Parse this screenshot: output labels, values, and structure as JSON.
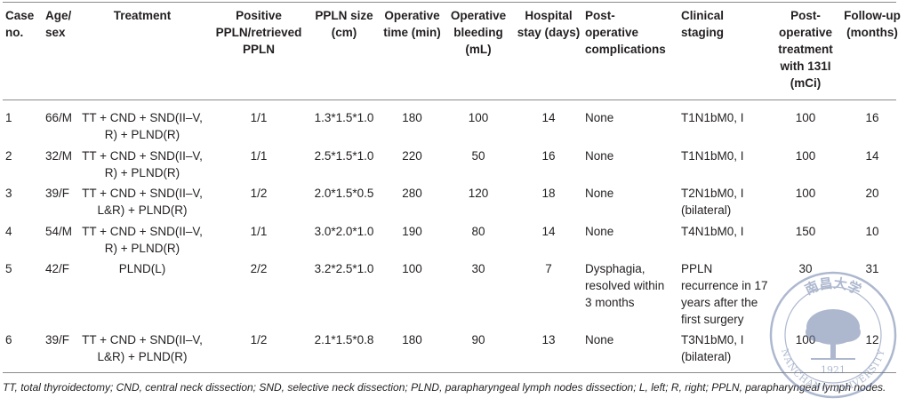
{
  "headers": [
    {
      "key": "case",
      "lines": [
        "Case",
        "no."
      ]
    },
    {
      "key": "agesex",
      "lines": [
        "Age/",
        "sex"
      ]
    },
    {
      "key": "treatment",
      "lines": [
        "Treatment"
      ]
    },
    {
      "key": "positive",
      "lines": [
        "Positive",
        "PPLN/retrieved",
        "PPLN"
      ]
    },
    {
      "key": "size",
      "lines": [
        "PPLN size",
        "(cm)"
      ]
    },
    {
      "key": "optime",
      "lines": [
        "Operative",
        "time (min)"
      ]
    },
    {
      "key": "bleeding",
      "lines": [
        "Operative",
        "bleeding",
        "(mL)"
      ]
    },
    {
      "key": "stay",
      "lines": [
        "Hospital",
        "stay (days)"
      ]
    },
    {
      "key": "complications",
      "lines": [
        "Post-",
        "operative",
        "complications"
      ]
    },
    {
      "key": "staging",
      "lines": [
        "Clinical",
        "staging"
      ]
    },
    {
      "key": "postop",
      "lines": [
        "Post-",
        "operative",
        "treatment",
        "with 131I",
        "(mCi)"
      ]
    },
    {
      "key": "followup",
      "lines": [
        "Follow-up",
        "(months)"
      ]
    }
  ],
  "rows": [
    {
      "case": "1",
      "agesex": "66/M",
      "treatment": [
        "TT + CND + SND(II–V,",
        "R) + PLND(R)"
      ],
      "positive": "1/1",
      "size": "1.3*1.5*1.0",
      "optime": "180",
      "bleeding": "100",
      "stay": "14",
      "complications": [
        "None"
      ],
      "staging": [
        "T1N1bM0, I"
      ],
      "postop": "100",
      "followup": "16"
    },
    {
      "case": "2",
      "agesex": "32/M",
      "treatment": [
        "TT + CND + SND(II–V,",
        "R) + PLND(R)"
      ],
      "positive": "1/1",
      "size": "2.5*1.5*1.0",
      "optime": "220",
      "bleeding": "50",
      "stay": "16",
      "complications": [
        "None"
      ],
      "staging": [
        "T1N1bM0, I"
      ],
      "postop": "100",
      "followup": "14"
    },
    {
      "case": "3",
      "agesex": "39/F",
      "treatment": [
        "TT + CND + SND(II–V,",
        "L&R) + PLND(R)"
      ],
      "positive": "1/2",
      "size": "2.0*1.5*0.5",
      "optime": "280",
      "bleeding": "120",
      "stay": "18",
      "complications": [
        "None"
      ],
      "staging": [
        "T2N1bM0, I",
        "(bilateral)"
      ],
      "postop": "100",
      "followup": "20"
    },
    {
      "case": "4",
      "agesex": "54/M",
      "treatment": [
        "TT + CND + SND(II–V,",
        "R) + PLND(R)"
      ],
      "positive": "1/1",
      "size": "3.0*2.0*1.0",
      "optime": "190",
      "bleeding": "80",
      "stay": "14",
      "complications": [
        "None"
      ],
      "staging": [
        "T4N1bM0, I"
      ],
      "postop": "150",
      "followup": "10"
    },
    {
      "case": "5",
      "agesex": "42/F",
      "treatment": [
        "PLND(L)"
      ],
      "positive": "2/2",
      "size": "3.2*2.5*1.0",
      "optime": "100",
      "bleeding": "30",
      "stay": "7",
      "complications": [
        "Dysphagia,",
        "resolved within",
        "3 months"
      ],
      "staging": [
        "PPLN",
        "recurrence in 17",
        "years after the",
        "first surgery"
      ],
      "postop": "30",
      "followup": "31"
    },
    {
      "case": "6",
      "agesex": "39/F",
      "treatment": [
        "TT + CND + SND(II–V,",
        "L&R) + PLND(R)"
      ],
      "positive": "1/2",
      "size": "2.1*1.5*0.8",
      "optime": "180",
      "bleeding": "90",
      "stay": "13",
      "complications": [
        "None"
      ],
      "staging": [
        "T3N1bM0, I",
        "(bilateral)"
      ],
      "postop": "100",
      "followup": "12"
    }
  ],
  "footnote": "TT, total thyroidectomy; CND, central neck dissection; SND, selective neck dissection; PLND, parapharyngeal lymph nodes dissection; L, left; R, right; PPLN, parapharyngeal lymph nodes.",
  "watermark": {
    "text_top": "南昌大学",
    "text_ring": "NANCHANG UNIVERSITY",
    "year": "1921",
    "color": "#6b7fa8"
  }
}
